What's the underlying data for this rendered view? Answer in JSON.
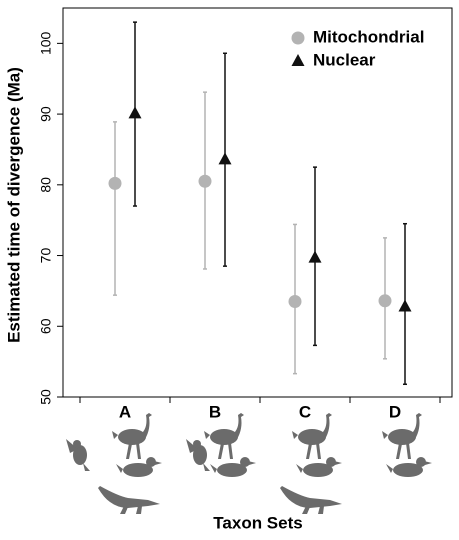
{
  "chart_data": {
    "type": "errorpoint",
    "xlabel": "Taxon Sets",
    "ylabel": "Estimated time of divergence (Ma)",
    "categories": [
      "A",
      "B",
      "C",
      "D"
    ],
    "series": [
      {
        "name": "Mitochondrial",
        "color": "#b3b3b3",
        "marker": "circle",
        "values": [
          80.2,
          80.5,
          63.5,
          63.6
        ],
        "lower": [
          64.4,
          68.1,
          53.3,
          55.4
        ],
        "upper": [
          88.9,
          93.1,
          74.4,
          72.5
        ]
      },
      {
        "name": "Nuclear",
        "color": "#111111",
        "marker": "triangle",
        "values": [
          90.1,
          83.6,
          69.7,
          62.8
        ],
        "lower": [
          77.0,
          68.5,
          57.3,
          51.8
        ],
        "upper": [
          103.0,
          98.6,
          82.5,
          74.5
        ]
      }
    ],
    "ylim": [
      50,
      105
    ],
    "yticks": [
      50,
      60,
      70,
      80,
      90,
      100
    ],
    "legend": "upper-right"
  }
}
